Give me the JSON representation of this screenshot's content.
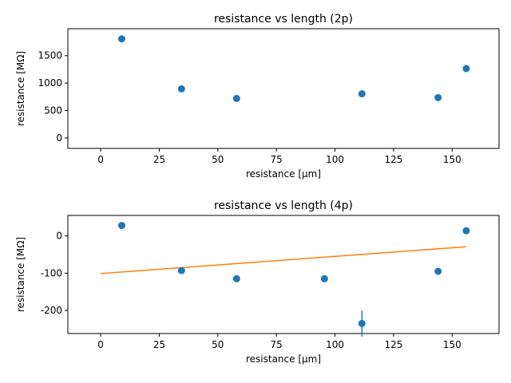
{
  "chart_data": [
    {
      "type": "scatter",
      "title": "resistance vs length (2p)",
      "xlabel": "resistance [µm]",
      "ylabel": "resistance [MΩ]",
      "xlim": [
        -14,
        170
      ],
      "ylim": [
        -190,
        1990
      ],
      "xticks": [
        0,
        25,
        50,
        75,
        100,
        125,
        150
      ],
      "yticks": [
        0,
        500,
        1000,
        1500
      ],
      "grid": false,
      "marker_color": "#1f77b4",
      "series": [
        {
          "x": [
            9,
            34.5,
            58,
            111.5,
            144,
            156
          ],
          "y": [
            1805,
            895,
            720,
            805,
            735,
            1265
          ]
        }
      ]
    },
    {
      "type": "scatter",
      "title": "resistance vs length (4p)",
      "xlabel": "resistance [µm]",
      "ylabel": "resistance [MΩ]",
      "xlim": [
        -14,
        170
      ],
      "ylim": [
        -262,
        55
      ],
      "xticks": [
        0,
        25,
        50,
        75,
        100,
        125,
        150
      ],
      "yticks": [
        -200,
        -100,
        0
      ],
      "grid": false,
      "marker_color": "#1f77b4",
      "fit_color": "#ff7f0e",
      "series": [
        {
          "x": [
            9,
            34.5,
            58,
            95.5,
            111.5,
            144,
            156
          ],
          "y": [
            28,
            -93,
            -115,
            -115,
            -235,
            -95,
            14
          ],
          "yerr": [
            0,
            0,
            0,
            0,
            35,
            0,
            0
          ]
        }
      ],
      "fit_line": {
        "x": [
          0,
          156
        ],
        "y": [
          -101,
          -29
        ]
      }
    }
  ]
}
